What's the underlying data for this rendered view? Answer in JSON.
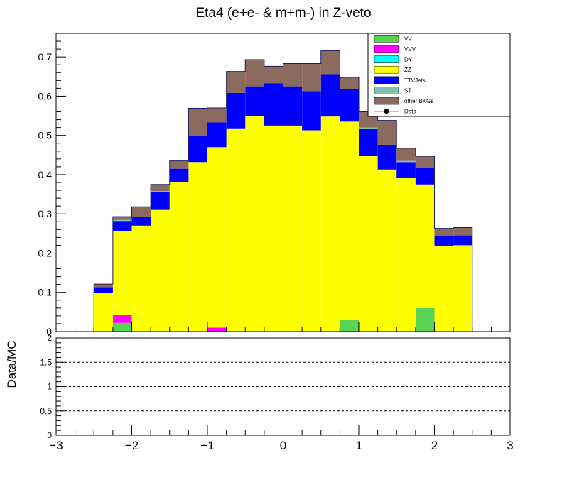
{
  "chart_data": [
    {
      "type": "bar",
      "stacked": true,
      "title": "Eta4 (e+e- & m+m-) in Z-veto",
      "xlim": [
        -3,
        3
      ],
      "ylim": [
        0,
        0.76
      ],
      "x_ticks": [
        "−3",
        "−2",
        "−1",
        "0",
        "1",
        "2",
        "3"
      ],
      "y_ticks": [
        "0",
        "0.1",
        "0.2",
        "0.3",
        "0.4",
        "0.5",
        "0.6",
        "0.7"
      ],
      "bin_edges": [
        -2.5,
        -2.25,
        -2.0,
        -1.75,
        -1.5,
        -1.25,
        -1.0,
        -0.75,
        -0.5,
        -0.25,
        0.0,
        0.25,
        0.5,
        0.75,
        1.0,
        1.25,
        1.5,
        1.75,
        2.0,
        2.25,
        2.5
      ],
      "legend": {
        "position": "top-right",
        "entries": [
          "VV",
          "VVV",
          "DY",
          "ZZ",
          "TTVJets",
          "ST",
          "other BKGs",
          "Data"
        ]
      },
      "series": [
        {
          "name": "VV",
          "color": "#59d354",
          "values": [
            0,
            0.022,
            0,
            0,
            0,
            0,
            0,
            0,
            0,
            0,
            0,
            0,
            0,
            0.03,
            0,
            0,
            0,
            0.06,
            0,
            0
          ]
        },
        {
          "name": "VVV",
          "color": "#ff00ff",
          "values": [
            0,
            0.02,
            0,
            0,
            0,
            0,
            0.01,
            0,
            0,
            0,
            0,
            0,
            0,
            0,
            0,
            0,
            0,
            0,
            0,
            0
          ]
        },
        {
          "name": "DY",
          "color": "#00ffff",
          "values": [
            0,
            0,
            0,
            0,
            0,
            0,
            0,
            0,
            0,
            0,
            0,
            0,
            0,
            0,
            0,
            0,
            0,
            0,
            0,
            0
          ]
        },
        {
          "name": "ZZ",
          "color": "#ffff00",
          "values": [
            0.098,
            0.215,
            0.27,
            0.31,
            0.38,
            0.432,
            0.46,
            0.518,
            0.55,
            0.525,
            0.525,
            0.513,
            0.548,
            0.505,
            0.447,
            0.413,
            0.392,
            0.315,
            0.218,
            0.22
          ]
        },
        {
          "name": "TTVJets",
          "color": "#0000ff",
          "values": [
            0.015,
            0.025,
            0.022,
            0.045,
            0.035,
            0.067,
            0.063,
            0.09,
            0.075,
            0.108,
            0.1,
            0.1,
            0.108,
            0.083,
            0.07,
            0.063,
            0.04,
            0.042,
            0.025,
            0.025
          ]
        },
        {
          "name": "ST",
          "color": "#7fc2a8",
          "values": [
            0,
            0.003,
            0,
            0.003,
            0,
            0,
            0,
            0,
            0,
            0,
            0,
            0,
            0,
            0,
            0.003,
            0,
            0.003,
            0,
            0,
            0
          ]
        },
        {
          "name": "other BKGs",
          "color": "#8c6a5e",
          "values": [
            0.008,
            0.008,
            0.026,
            0.017,
            0.02,
            0.07,
            0.037,
            0.055,
            0.068,
            0.043,
            0.058,
            0.07,
            0.06,
            0.03,
            0.04,
            0.062,
            0.032,
            0.03,
            0.02,
            0.02
          ]
        },
        {
          "name": "Data",
          "color": "#000000",
          "values": [
            0,
            0,
            0,
            0,
            0,
            0,
            0,
            0,
            0,
            0,
            0,
            0,
            0,
            0,
            0,
            0,
            0,
            0,
            0,
            0
          ]
        }
      ]
    },
    {
      "type": "line",
      "ylabel": "Data/MC",
      "xlim": [
        -3,
        3
      ],
      "ylim": [
        0,
        2
      ],
      "y_ticks": [
        "0",
        "0.5",
        "1",
        "1.5",
        "2"
      ],
      "reference_lines": [
        0.5,
        1.0,
        1.5
      ],
      "grid": false
    }
  ]
}
